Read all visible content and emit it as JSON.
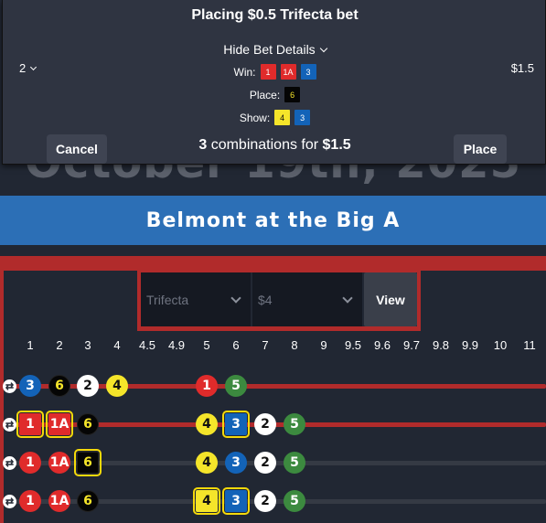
{
  "page": {
    "date_heading": "October 19th, 2025",
    "track_title": "Belmont at the Big A"
  },
  "filters": {
    "bet_type": "Trifecta",
    "amount": "$4",
    "view_label": "View"
  },
  "columns": [
    "1",
    "2",
    "3",
    "4",
    "4.5",
    "4.9",
    "5",
    "6",
    "7",
    "8",
    "9",
    "9.5",
    "9.6",
    "9.7",
    "9.8",
    "9.9",
    "10",
    "11"
  ],
  "colors": {
    "red": "#e02b2b",
    "blue": "#1363b8",
    "white": "#ffffff",
    "yellow": "#f5e52a",
    "black": "#050505",
    "green": "#3c8a3f"
  },
  "bet_rows": [
    {
      "line": "red",
      "tokens": [
        {
          "label": "3",
          "bg": "#1363b8",
          "fg": "#ffffff",
          "col": 0
        },
        {
          "label": "6",
          "bg": "#050505",
          "fg": "#f5e52a",
          "col": 1
        },
        {
          "label": "2",
          "bg": "#ffffff",
          "fg": "#111111",
          "col": 2
        },
        {
          "label": "4",
          "bg": "#f5e52a",
          "fg": "#111111",
          "col": 3
        },
        {
          "label": "1",
          "bg": "#e02b2b",
          "fg": "#ffffff",
          "col": 6
        },
        {
          "label": "5",
          "bg": "#3c8a3f",
          "fg": "#ffffff",
          "col": 7
        }
      ]
    },
    {
      "line": "red",
      "tokens": [
        {
          "label": "1",
          "bg": "#e02b2b",
          "fg": "#ffffff",
          "col": 0,
          "selected": true
        },
        {
          "label": "1A",
          "bg": "#e02b2b",
          "fg": "#ffffff",
          "col": 1,
          "selected": true
        },
        {
          "label": "6",
          "bg": "#050505",
          "fg": "#f5e52a",
          "col": 2
        },
        {
          "label": "4",
          "bg": "#f5e52a",
          "fg": "#111111",
          "col": 6
        },
        {
          "label": "3",
          "bg": "#1363b8",
          "fg": "#ffffff",
          "col": 7,
          "selected": true
        },
        {
          "label": "2",
          "bg": "#ffffff",
          "fg": "#111111",
          "col": 8
        },
        {
          "label": "5",
          "bg": "#3c8a3f",
          "fg": "#ffffff",
          "col": 9
        }
      ]
    },
    {
      "line": "dark",
      "tokens": [
        {
          "label": "1",
          "bg": "#e02b2b",
          "fg": "#ffffff",
          "col": 0
        },
        {
          "label": "1A",
          "bg": "#e02b2b",
          "fg": "#ffffff",
          "col": 1
        },
        {
          "label": "6",
          "bg": "#050505",
          "fg": "#f5e52a",
          "col": 2,
          "selected": true
        },
        {
          "label": "4",
          "bg": "#f5e52a",
          "fg": "#111111",
          "col": 6
        },
        {
          "label": "3",
          "bg": "#1363b8",
          "fg": "#ffffff",
          "col": 7
        },
        {
          "label": "2",
          "bg": "#ffffff",
          "fg": "#111111",
          "col": 8
        },
        {
          "label": "5",
          "bg": "#3c8a3f",
          "fg": "#ffffff",
          "col": 9
        }
      ]
    },
    {
      "line": "dark",
      "tokens": [
        {
          "label": "1",
          "bg": "#e02b2b",
          "fg": "#ffffff",
          "col": 0
        },
        {
          "label": "1A",
          "bg": "#e02b2b",
          "fg": "#ffffff",
          "col": 1
        },
        {
          "label": "6",
          "bg": "#050505",
          "fg": "#f5e52a",
          "col": 2
        },
        {
          "label": "4",
          "bg": "#f5e52a",
          "fg": "#111111",
          "col": 6,
          "selected": true
        },
        {
          "label": "3",
          "bg": "#1363b8",
          "fg": "#ffffff",
          "col": 7,
          "selected": true
        },
        {
          "label": "2",
          "bg": "#ffffff",
          "fg": "#111111",
          "col": 8
        },
        {
          "label": "5",
          "bg": "#3c8a3f",
          "fg": "#ffffff",
          "col": 9
        }
      ]
    }
  ],
  "modal": {
    "title": "Placing $0.5 Trifecta bet",
    "hide_details_label": "Hide Bet Details",
    "multiplier": "2",
    "cost": "$1.5",
    "win_label": "Win:",
    "win_chips": [
      {
        "label": "1",
        "bg": "#e02b2b",
        "fg": "#ffffff"
      },
      {
        "label": "1A",
        "bg": "#e02b2b",
        "fg": "#ffffff"
      },
      {
        "label": "3",
        "bg": "#1363b8",
        "fg": "#ffffff"
      }
    ],
    "place_label": "Place:",
    "place_chips": [
      {
        "label": "6",
        "bg": "#050505",
        "fg": "#f5e52a"
      }
    ],
    "show_label": "Show:",
    "show_chips": [
      {
        "label": "4",
        "bg": "#f5e52a",
        "fg": "#111111"
      },
      {
        "label": "3",
        "bg": "#1363b8",
        "fg": "#ffffff"
      }
    ],
    "combo_count": "3",
    "combo_text": "combinations for",
    "combo_total": "$1.5",
    "cancel_label": "Cancel",
    "place_button_label": "Place"
  }
}
